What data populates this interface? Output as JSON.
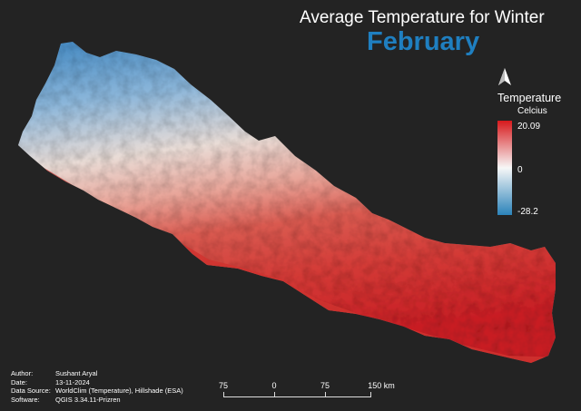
{
  "title": {
    "line1": "Average Temperature for Winter",
    "line2": "February",
    "line2_color": "#1f7fc0"
  },
  "north_arrow": {
    "icon": "north-arrow-icon"
  },
  "legend": {
    "title": "Temperature",
    "unit": "Celcius",
    "max": "20.09",
    "mid": "0",
    "min": "-28.2",
    "colors": {
      "high": "#d7191c",
      "mid": "#f7f7f7",
      "low": "#2b83ba"
    }
  },
  "credits": [
    {
      "key": "Author:",
      "value": "Sushant Aryal"
    },
    {
      "key": "Date:",
      "value": "13-11-2024"
    },
    {
      "key": "Data Source:",
      "value": "WorldClim (Temperature), Hillshade (ESA)"
    },
    {
      "key": "Software:",
      "value": "QGIS 3.34.11-Prizren"
    }
  ],
  "scalebar": {
    "labels": [
      "75",
      "0",
      "75",
      "150 km"
    ]
  }
}
